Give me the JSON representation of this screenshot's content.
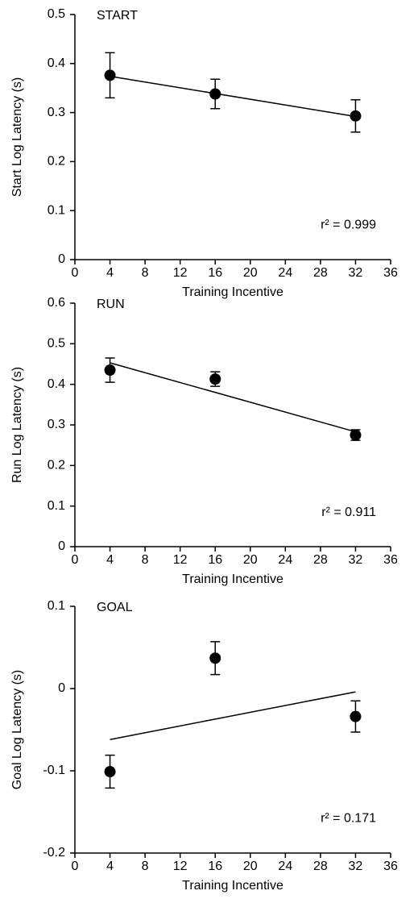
{
  "chart_data": [
    {
      "type": "scatter",
      "title": "START",
      "xlabel": "Training Incentive",
      "ylabel": "Start Log Latency (s)",
      "annotation": "r² = 0.999",
      "x": [
        4,
        16,
        32
      ],
      "series": [
        {
          "color": "#000000",
          "values": [
            0.376,
            0.338,
            0.293
          ],
          "errors": [
            0.046,
            0.03,
            0.033
          ]
        }
      ],
      "fit": {
        "x": [
          4,
          32
        ],
        "y": [
          0.374,
          0.292
        ]
      },
      "xlim": [
        0,
        36
      ],
      "xticks": [
        0,
        4,
        8,
        12,
        16,
        20,
        24,
        28,
        32,
        36
      ],
      "ylim": [
        0,
        0.5
      ],
      "yticks": [
        0,
        0.1,
        0.2,
        0.3,
        0.4,
        0.5
      ],
      "grid": false
    },
    {
      "type": "scatter",
      "title": "RUN",
      "xlabel": "Training Incentive",
      "ylabel": "Run Log Latency (s)",
      "annotation": "r² = 0.911",
      "x": [
        4,
        16,
        32
      ],
      "series": [
        {
          "color": "#000000",
          "values": [
            0.435,
            0.413,
            0.275
          ],
          "errors": [
            0.03,
            0.018,
            0.013
          ]
        }
      ],
      "fit": {
        "x": [
          4,
          32
        ],
        "y": [
          0.453,
          0.283
        ]
      },
      "xlim": [
        0,
        36
      ],
      "xticks": [
        0,
        4,
        8,
        12,
        16,
        20,
        24,
        28,
        32,
        36
      ],
      "ylim": [
        0,
        0.6
      ],
      "yticks": [
        0,
        0.1,
        0.2,
        0.3,
        0.4,
        0.5,
        0.6
      ],
      "grid": false
    },
    {
      "type": "scatter",
      "title": "GOAL",
      "xlabel": "Training Incentive",
      "ylabel": "Goal Log Latency (s)",
      "annotation": "r² = 0.171",
      "x": [
        4,
        16,
        32
      ],
      "series": [
        {
          "color": "#000000",
          "values": [
            -0.101,
            0.037,
            -0.034
          ],
          "errors": [
            0.02,
            0.02,
            0.019
          ]
        }
      ],
      "fit": {
        "x": [
          4,
          32
        ],
        "y": [
          -0.062,
          -0.004
        ]
      },
      "xlim": [
        0,
        36
      ],
      "xticks": [
        0,
        4,
        8,
        12,
        16,
        20,
        24,
        28,
        32,
        36
      ],
      "ylim": [
        -0.2,
        0.1
      ],
      "yticks": [
        -0.2,
        -0.1,
        0,
        0.1
      ],
      "grid": false
    }
  ]
}
